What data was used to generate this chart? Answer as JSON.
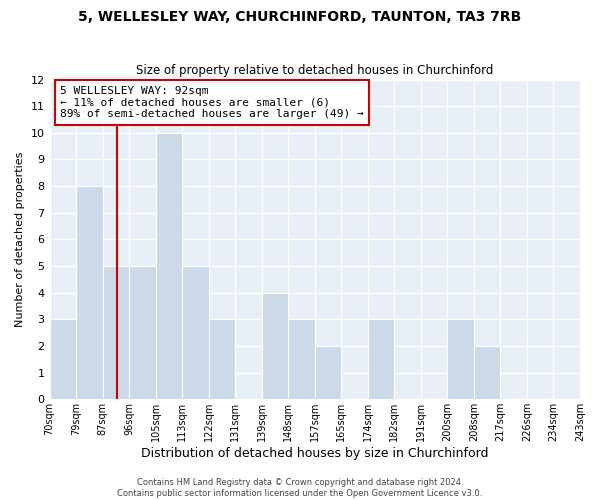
{
  "title": "5, WELLESLEY WAY, CHURCHINFORD, TAUNTON, TA3 7RB",
  "subtitle": "Size of property relative to detached houses in Churchinford",
  "xlabel": "Distribution of detached houses by size in Churchinford",
  "ylabel": "Number of detached properties",
  "bar_color": "#ccd9e8",
  "bar_edge_color": "#ffffff",
  "vline_color": "#cc0000",
  "vline_position": 2.5,
  "bin_labels": [
    "70sqm",
    "79sqm",
    "87sqm",
    "96sqm",
    "105sqm",
    "113sqm",
    "122sqm",
    "131sqm",
    "139sqm",
    "148sqm",
    "157sqm",
    "165sqm",
    "174sqm",
    "182sqm",
    "191sqm",
    "200sqm",
    "208sqm",
    "217sqm",
    "226sqm",
    "234sqm",
    "243sqm"
  ],
  "counts": [
    3,
    8,
    5,
    5,
    10,
    5,
    3,
    0,
    4,
    3,
    2,
    0,
    3,
    0,
    0,
    3,
    2,
    0,
    0,
    0
  ],
  "ylim": [
    0,
    12
  ],
  "yticks": [
    0,
    1,
    2,
    3,
    4,
    5,
    6,
    7,
    8,
    9,
    10,
    11,
    12
  ],
  "annotation_title": "5 WELLESLEY WAY: 92sqm",
  "annotation_line1": "← 11% of detached houses are smaller (6)",
  "annotation_line2": "89% of semi-detached houses are larger (49) →",
  "annotation_box_color": "#ffffff",
  "annotation_box_edge": "#cc0000",
  "footer1": "Contains HM Land Registry data © Crown copyright and database right 2024.",
  "footer2": "Contains public sector information licensed under the Open Government Licence v3.0.",
  "background_color": "#ffffff",
  "plot_bg_color": "#e8eef5",
  "grid_color": "#ffffff"
}
